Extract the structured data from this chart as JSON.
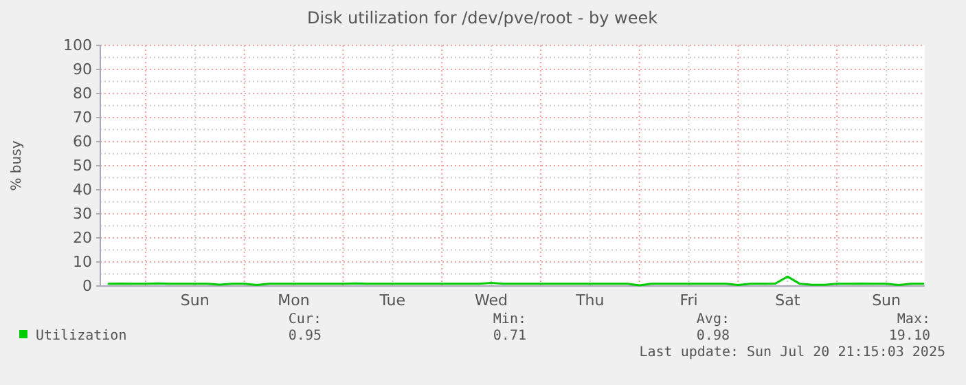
{
  "chart_data": {
    "type": "line",
    "title": "Disk utilization for /dev/pve/root - by week",
    "ylabel": "% busy",
    "categories": [
      null,
      null,
      null,
      null,
      null,
      null,
      null,
      "Sun",
      null,
      null,
      null,
      null,
      null,
      null,
      null,
      "Mon",
      null,
      null,
      null,
      null,
      null,
      null,
      null,
      "Tue",
      null,
      null,
      null,
      null,
      null,
      null,
      null,
      "Wed",
      null,
      null,
      null,
      null,
      null,
      null,
      null,
      "Thu",
      null,
      null,
      null,
      null,
      null,
      null,
      null,
      "Fri",
      null,
      null,
      null,
      null,
      null,
      null,
      null,
      "Sat",
      null,
      null,
      null,
      null,
      null,
      null,
      null,
      "Sun",
      null,
      null,
      null
    ],
    "ylim": [
      0,
      100
    ],
    "yticks": [
      0,
      10,
      20,
      30,
      40,
      50,
      60,
      70,
      80,
      90,
      100
    ],
    "grid": true,
    "legend": "bottom",
    "series": [
      {
        "name": "Utilization",
        "color": "#00cc00",
        "values": [
          0.9,
          1.0,
          0.9,
          0.9,
          1.1,
          0.9,
          0.9,
          0.9,
          0.9,
          0.6,
          0.9,
          0.9,
          0.4,
          0.9,
          0.9,
          0.9,
          0.9,
          0.9,
          0.9,
          0.9,
          1.1,
          0.9,
          0.9,
          0.9,
          0.9,
          0.9,
          0.9,
          0.9,
          0.9,
          0.9,
          0.9,
          1.3,
          0.9,
          0.9,
          0.9,
          0.9,
          0.9,
          0.9,
          0.9,
          0.9,
          0.9,
          0.9,
          0.9,
          0.3,
          0.9,
          0.9,
          0.9,
          0.9,
          0.9,
          0.9,
          0.9,
          0.4,
          0.9,
          0.9,
          1.0,
          3.9,
          0.9,
          0.5,
          0.5,
          0.9,
          0.9,
          1.0,
          0.9,
          0.9,
          0.4,
          0.9,
          0.9
        ]
      }
    ],
    "annotations": [
      "Cur:",
      "0.95",
      "Min:",
      "0.71",
      "Avg:",
      "0.98",
      "Max:",
      "19.10",
      "Last update: Sun Jul 20 21:15:03 2025"
    ]
  }
}
